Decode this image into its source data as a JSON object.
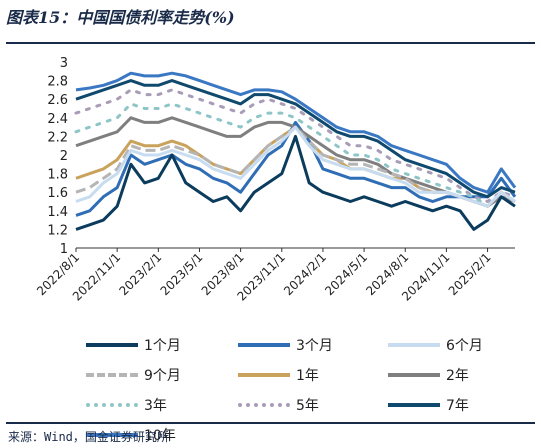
{
  "header": {
    "title": "图表15：中国国债利率走势(%)"
  },
  "footer": {
    "source": "来源：Wind，国金证券研究所"
  },
  "chart_data": {
    "type": "line",
    "title": "中国国债利率走势(%)",
    "ylim": [
      1,
      3
    ],
    "yticks": [
      "1",
      "1.2",
      "1.4",
      "1.6",
      "1.8",
      "2",
      "2.2",
      "2.4",
      "2.6",
      "2.8",
      "3"
    ],
    "xticks": [
      "2022/8/1",
      "2022/11/1",
      "2023/2/1",
      "2023/5/1",
      "2023/8/1",
      "2023/11/1",
      "2024/2/1",
      "2024/5/1",
      "2024/8/1",
      "2024/11/1",
      "2025/2/1"
    ],
    "x": [
      "2022/8/1",
      "2022/9/1",
      "2022/10/1",
      "2022/11/1",
      "2022/12/1",
      "2023/1/1",
      "2023/2/1",
      "2023/3/1",
      "2023/4/1",
      "2023/5/1",
      "2023/6/1",
      "2023/7/1",
      "2023/8/1",
      "2023/9/1",
      "2023/10/1",
      "2023/11/1",
      "2023/12/1",
      "2024/1/1",
      "2024/2/1",
      "2024/3/1",
      "2024/4/1",
      "2024/5/1",
      "2024/6/1",
      "2024/7/1",
      "2024/8/1",
      "2024/9/1",
      "2024/10/1",
      "2024/11/1",
      "2024/12/1",
      "2025/1/1",
      "2025/2/1",
      "2025/3/1",
      "2025/4/1"
    ],
    "grid": false,
    "legend_position": "bottom",
    "series": [
      {
        "name": "1个月",
        "color": "#0b3c5d",
        "dash": "solid",
        "width": 3,
        "values": [
          1.2,
          1.25,
          1.3,
          1.45,
          1.9,
          1.7,
          1.75,
          2.0,
          1.7,
          1.6,
          1.5,
          1.55,
          1.4,
          1.6,
          1.7,
          1.8,
          2.2,
          1.7,
          1.6,
          1.55,
          1.5,
          1.55,
          1.5,
          1.45,
          1.5,
          1.45,
          1.4,
          1.45,
          1.4,
          1.2,
          1.3,
          1.55,
          1.45
        ]
      },
      {
        "name": "3个月",
        "color": "#2f6db5",
        "dash": "solid",
        "width": 3,
        "values": [
          1.35,
          1.4,
          1.55,
          1.65,
          2.0,
          1.9,
          1.95,
          2.0,
          1.9,
          1.85,
          1.75,
          1.7,
          1.6,
          1.8,
          2.0,
          2.1,
          2.35,
          2.15,
          1.85,
          1.8,
          1.75,
          1.75,
          1.7,
          1.65,
          1.65,
          1.55,
          1.5,
          1.55,
          1.55,
          1.55,
          1.55,
          1.75,
          1.55
        ]
      },
      {
        "name": "6个月",
        "color": "#c7dcf0",
        "dash": "solid",
        "width": 3,
        "values": [
          1.5,
          1.55,
          1.7,
          1.8,
          2.05,
          2.0,
          2.0,
          2.05,
          2.0,
          1.95,
          1.85,
          1.8,
          1.75,
          1.9,
          2.05,
          2.15,
          2.3,
          2.1,
          1.95,
          1.9,
          1.85,
          1.85,
          1.8,
          1.75,
          1.7,
          1.6,
          1.6,
          1.6,
          1.55,
          1.5,
          1.45,
          1.6,
          1.5
        ]
      },
      {
        "name": "9个月",
        "color": "#b5b5b5",
        "dash": "dash",
        "width": 3,
        "values": [
          1.6,
          1.65,
          1.75,
          1.85,
          2.1,
          2.05,
          2.05,
          2.1,
          2.05,
          2.0,
          1.9,
          1.85,
          1.8,
          1.95,
          2.1,
          2.2,
          2.3,
          2.15,
          2.0,
          1.95,
          1.9,
          1.9,
          1.85,
          1.8,
          1.75,
          1.65,
          1.6,
          1.6,
          1.55,
          1.5,
          1.45,
          1.6,
          1.5
        ]
      },
      {
        "name": "1年",
        "color": "#c9a35c",
        "dash": "solid",
        "width": 3,
        "values": [
          1.75,
          1.8,
          1.85,
          1.95,
          2.15,
          2.1,
          2.1,
          2.15,
          2.1,
          2.0,
          1.9,
          1.85,
          1.8,
          1.95,
          2.1,
          2.2,
          2.3,
          2.15,
          2.0,
          1.95,
          1.85,
          1.85,
          1.8,
          1.75,
          1.75,
          1.65,
          1.6,
          1.6,
          1.55,
          1.5,
          1.45,
          1.6,
          1.5
        ]
      },
      {
        "name": "2年",
        "color": "#7f7f7f",
        "dash": "solid",
        "width": 3,
        "values": [
          2.1,
          2.15,
          2.2,
          2.25,
          2.4,
          2.35,
          2.35,
          2.4,
          2.35,
          2.3,
          2.25,
          2.2,
          2.2,
          2.3,
          2.35,
          2.35,
          2.3,
          2.2,
          2.1,
          2.0,
          1.95,
          1.95,
          1.9,
          1.8,
          1.75,
          1.7,
          1.65,
          1.6,
          1.55,
          1.5,
          1.45,
          1.55,
          1.5
        ]
      },
      {
        "name": "3年",
        "color": "#8ec5c6",
        "dash": "dashdot",
        "width": 3,
        "values": [
          2.25,
          2.3,
          2.35,
          2.4,
          2.55,
          2.5,
          2.5,
          2.55,
          2.5,
          2.45,
          2.4,
          2.35,
          2.3,
          2.4,
          2.45,
          2.45,
          2.4,
          2.3,
          2.2,
          2.1,
          2.0,
          2.0,
          1.95,
          1.85,
          1.8,
          1.75,
          1.7,
          1.65,
          1.6,
          1.55,
          1.45,
          1.55,
          1.5
        ]
      },
      {
        "name": "5年",
        "color": "#a99cb6",
        "dash": "dashdot",
        "width": 3,
        "values": [
          2.45,
          2.5,
          2.55,
          2.6,
          2.7,
          2.65,
          2.65,
          2.7,
          2.65,
          2.6,
          2.55,
          2.5,
          2.45,
          2.55,
          2.6,
          2.55,
          2.5,
          2.4,
          2.3,
          2.2,
          2.1,
          2.1,
          2.05,
          1.95,
          1.9,
          1.85,
          1.8,
          1.75,
          1.65,
          1.55,
          1.5,
          1.6,
          1.55
        ]
      },
      {
        "name": "7年",
        "color": "#0f4a6e",
        "dash": "solid",
        "width": 3,
        "values": [
          2.6,
          2.65,
          2.7,
          2.75,
          2.8,
          2.75,
          2.75,
          2.8,
          2.75,
          2.7,
          2.65,
          2.6,
          2.55,
          2.65,
          2.65,
          2.6,
          2.55,
          2.45,
          2.35,
          2.25,
          2.2,
          2.2,
          2.15,
          2.05,
          1.95,
          1.9,
          1.85,
          1.8,
          1.7,
          1.6,
          1.55,
          1.65,
          1.6
        ]
      },
      {
        "name": "10年",
        "color": "#3a78c3",
        "dash": "solid",
        "width": 3,
        "values": [
          2.7,
          2.72,
          2.75,
          2.8,
          2.88,
          2.85,
          2.85,
          2.88,
          2.85,
          2.8,
          2.75,
          2.7,
          2.65,
          2.7,
          2.7,
          2.68,
          2.6,
          2.5,
          2.4,
          2.3,
          2.25,
          2.25,
          2.2,
          2.1,
          2.05,
          2.0,
          1.95,
          1.9,
          1.75,
          1.65,
          1.6,
          1.85,
          1.65
        ]
      }
    ]
  }
}
